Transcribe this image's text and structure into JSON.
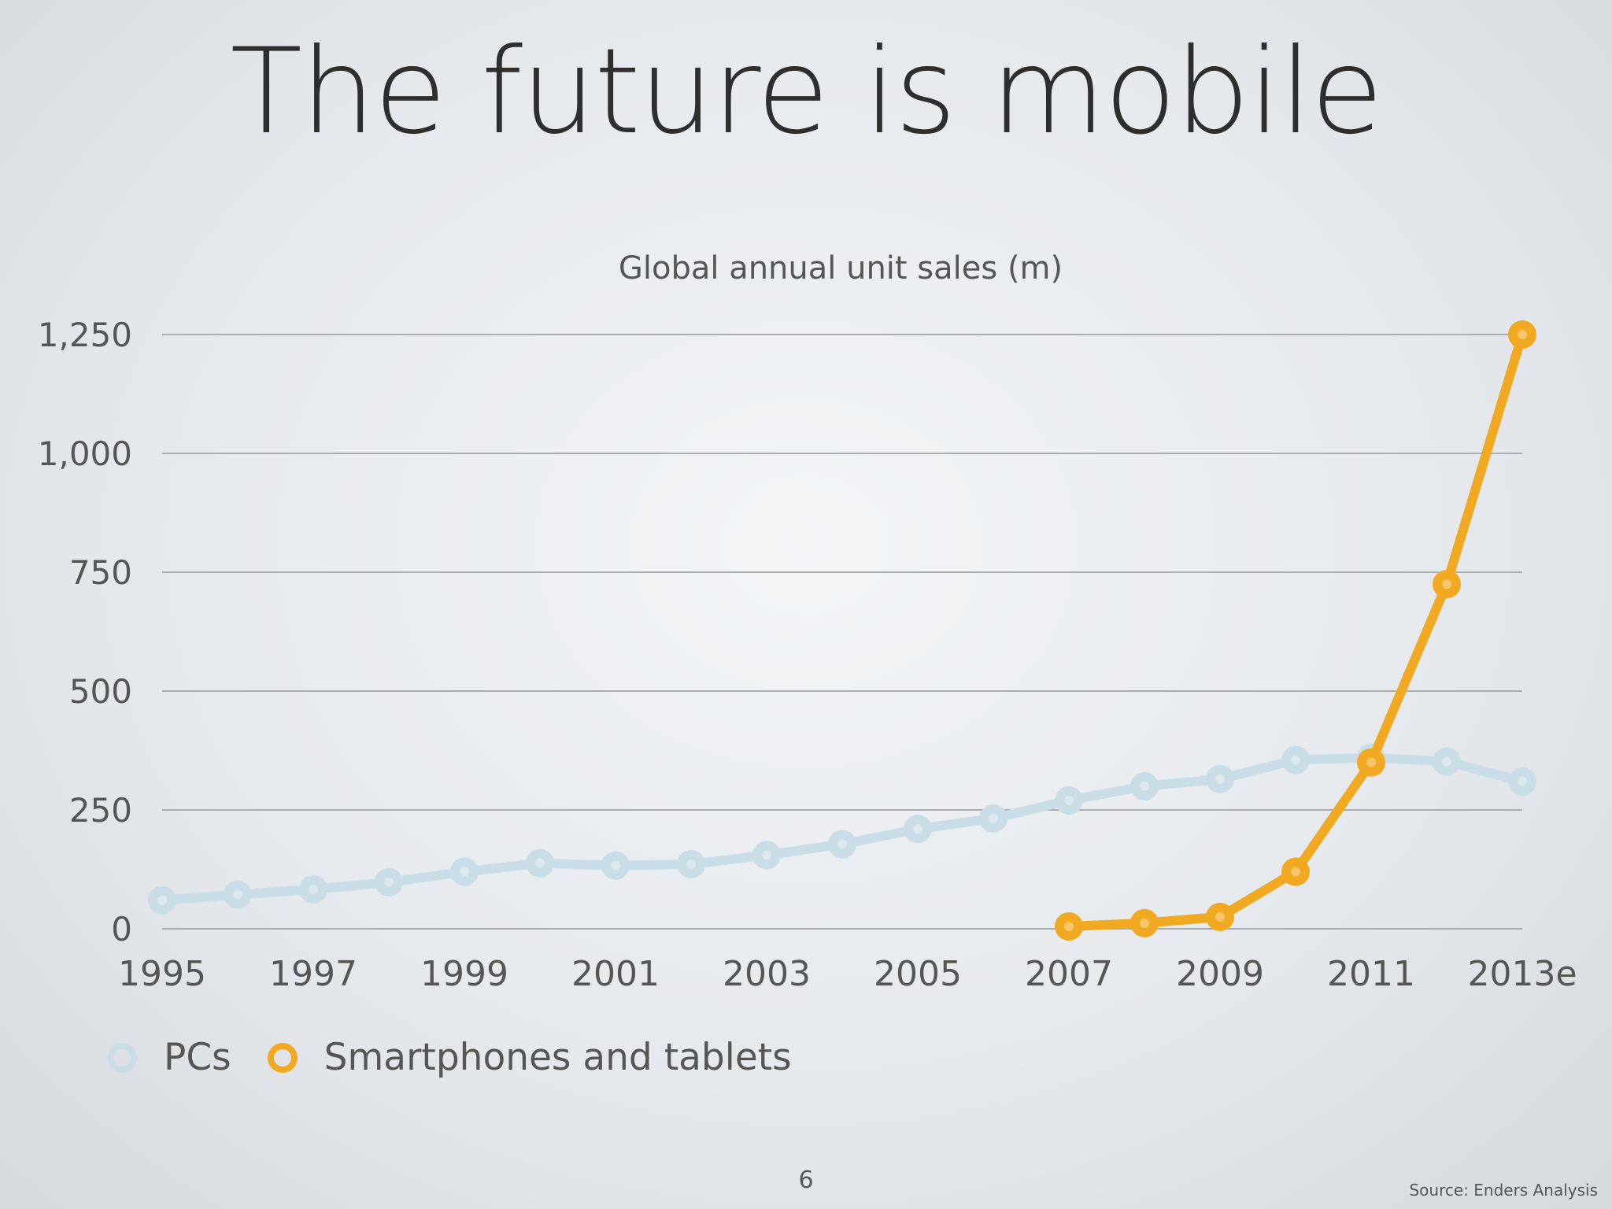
{
  "slide": {
    "title": "The future is mobile",
    "page_number": "6",
    "source": "Source: Enders Analysis"
  },
  "colors": {
    "pcs": "#c9dde6",
    "smartphones": "#f2a922",
    "gridline": "#a9adb2",
    "text": "#555555"
  },
  "chart_data": {
    "type": "line",
    "title": "Global annual unit sales (m)",
    "xlabel": "",
    "ylabel": "",
    "x": [
      "1995",
      "1996",
      "1997",
      "1998",
      "1999",
      "2000",
      "2001",
      "2002",
      "2003",
      "2004",
      "2005",
      "2006",
      "2007",
      "2008",
      "2009",
      "2010",
      "2011",
      "2012",
      "2013e"
    ],
    "x_tick_labels": [
      "1995",
      "1997",
      "1999",
      "2001",
      "2003",
      "2005",
      "2007",
      "2009",
      "2011",
      "2013e"
    ],
    "y_ticks": [
      0,
      250,
      500,
      750,
      1000,
      1250
    ],
    "y_tick_labels": [
      "0",
      "250",
      "500",
      "750",
      "1,000",
      "1,250"
    ],
    "ylim": [
      0,
      1250
    ],
    "grid": true,
    "legend_position": "bottom-left",
    "series": [
      {
        "name": "PCs",
        "values": [
          60,
          72,
          83,
          98,
          120,
          138,
          133,
          136,
          155,
          178,
          210,
          232,
          270,
          300,
          315,
          355,
          360,
          352,
          310
        ]
      },
      {
        "name": "Smartphones and tablets",
        "values": [
          null,
          null,
          null,
          null,
          null,
          null,
          null,
          null,
          null,
          null,
          null,
          null,
          5,
          12,
          25,
          120,
          350,
          725,
          1250
        ]
      }
    ]
  }
}
